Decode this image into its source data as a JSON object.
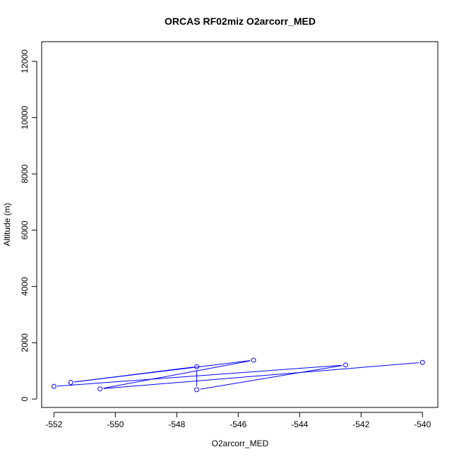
{
  "chart_data": {
    "type": "scatter",
    "title": "ORCAS RF02miz O2arcorr_MED",
    "xlabel": "O2arcorr_MED",
    "ylabel": "Altitude (m)",
    "xlim": [
      -552.4,
      -539.5
    ],
    "ylim": [
      -300,
      12700
    ],
    "xticks": [
      -552,
      -550,
      -548,
      -546,
      -544,
      -542,
      -540
    ],
    "yticks": [
      0,
      2000,
      4000,
      6000,
      8000,
      10000,
      12000
    ],
    "grid": false,
    "legend": "none",
    "color": "#0000ff",
    "series": [
      {
        "points": [
          {
            "x": -552.0,
            "y": 450
          },
          {
            "x": -542.5,
            "y": 1210
          },
          {
            "x": -547.35,
            "y": 330
          },
          {
            "x": -547.35,
            "y": 1150
          },
          {
            "x": -551.45,
            "y": 590
          },
          {
            "x": -545.5,
            "y": 1380
          },
          {
            "x": -550.5,
            "y": 360
          },
          {
            "x": -540.0,
            "y": 1300
          }
        ]
      }
    ]
  }
}
